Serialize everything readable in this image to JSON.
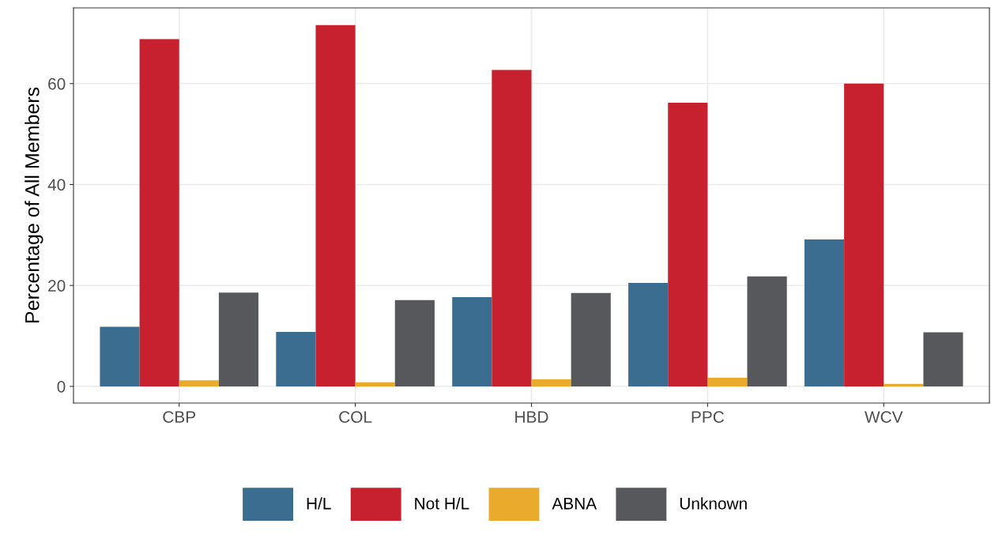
{
  "chart_data": {
    "type": "bar",
    "ylabel": "Percentage of All Members",
    "categories": [
      "CBP",
      "COL",
      "HBD",
      "PPC",
      "WCV"
    ],
    "series": [
      {
        "name": "H/L",
        "color": "#3a6d8f",
        "values": [
          11.8,
          10.8,
          17.7,
          20.5,
          29.1
        ]
      },
      {
        "name": "Not H/L",
        "color": "#c7202f",
        "values": [
          68.8,
          71.6,
          62.7,
          56.2,
          60.0
        ]
      },
      {
        "name": "ABNA",
        "color": "#eaab2d",
        "values": [
          1.2,
          0.8,
          1.4,
          1.7,
          0.5
        ]
      },
      {
        "name": "Unknown",
        "color": "#57585c",
        "values": [
          18.6,
          17.1,
          18.5,
          21.8,
          10.7
        ]
      }
    ],
    "ylim": [
      -3.3,
      75
    ],
    "yticks": [
      0,
      20,
      40,
      60
    ],
    "grid": true,
    "legend": "bottom"
  }
}
